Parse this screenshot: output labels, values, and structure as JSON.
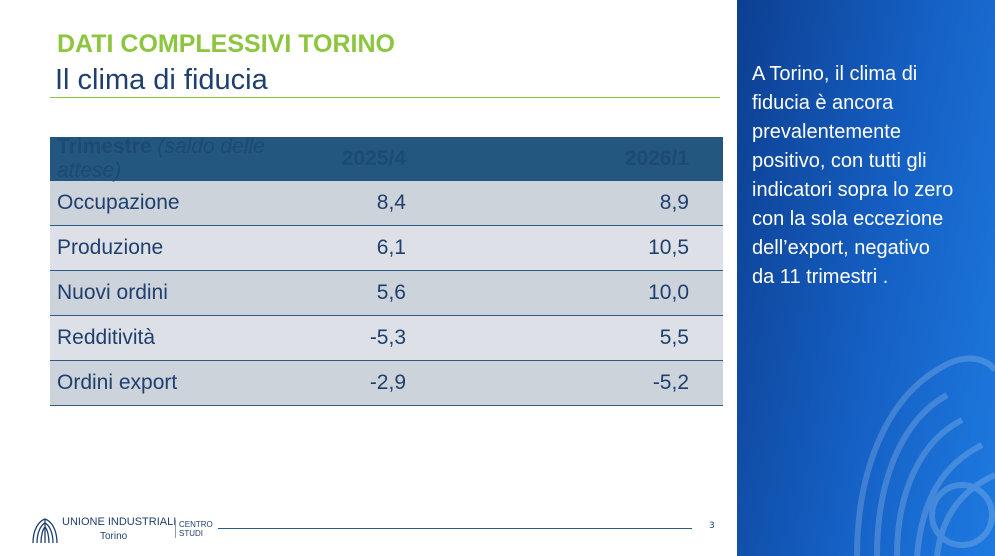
{
  "header": {
    "title": "DATI COMPLESSIVI TORINO",
    "subtitle": "Il clima di fiducia"
  },
  "table": {
    "header_label": "Trimestre",
    "header_note": "(saldo delle attese)",
    "columns": [
      "2025/4",
      "2026/1"
    ],
    "rows": [
      [
        "Occupazione",
        "8,4",
        "8,9"
      ],
      [
        "Produzione",
        "6,1",
        "10,5"
      ],
      [
        "Nuovi ordini",
        "5,6",
        "10,0"
      ],
      [
        "Redditività",
        "-5,3",
        "5,5"
      ],
      [
        "Ordini export",
        "-2,9",
        "-5,2"
      ]
    ]
  },
  "sidebar": {
    "lines": [
      "A Torino, il clima di",
      "fiducia è ancora",
      "prevalentemente",
      "positivo, con tutti gli",
      "indicatori sopra lo zero",
      "con la sola eccezione",
      "dell’export, negativo",
      "da 11 trimestri ."
    ]
  },
  "footer": {
    "org": "UNIONE INDUSTRIALI",
    "city": "Torino",
    "dept": [
      "CENTRO",
      "STUDI"
    ],
    "page": "3"
  }
}
